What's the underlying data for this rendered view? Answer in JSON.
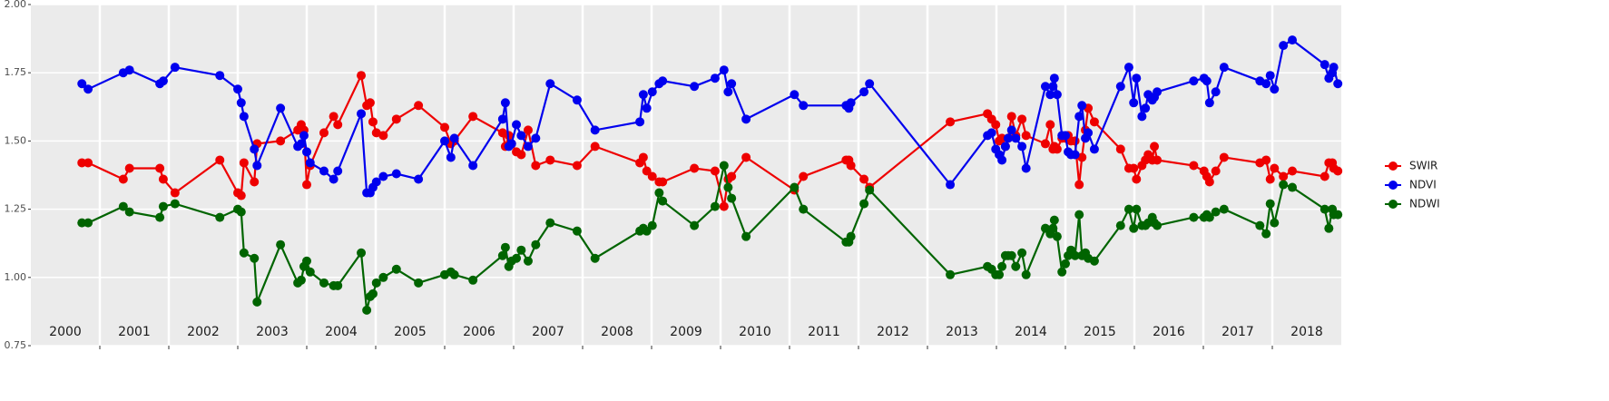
{
  "chart_data": {
    "type": "line",
    "xlim": [
      2000,
      2019
    ],
    "xticks": [
      2001,
      2002,
      2003,
      2004,
      2005,
      2006,
      2007,
      2008,
      2009,
      2010,
      2011,
      2012,
      2013,
      2014,
      2015,
      2016,
      2017,
      2018
    ],
    "ylim": [
      0.75,
      2.0
    ],
    "yticks": [
      {
        "value": 0.75,
        "label": "0.75"
      },
      {
        "value": 1.0,
        "label": "1.00"
      },
      {
        "value": 1.25,
        "label": "1.25"
      },
      {
        "value": 1.5,
        "label": "1.50"
      },
      {
        "value": 1.75,
        "label": "1.75"
      },
      {
        "value": 2.0,
        "label": "2.00"
      }
    ],
    "grid": true,
    "legend": "right",
    "year_labels": [
      {
        "value": 2000.5,
        "label": "2000"
      },
      {
        "value": 2001.5,
        "label": "2001"
      },
      {
        "value": 2002.5,
        "label": "2002"
      },
      {
        "value": 2003.5,
        "label": "2003"
      },
      {
        "value": 2004.5,
        "label": "2004"
      },
      {
        "value": 2005.5,
        "label": "2005"
      },
      {
        "value": 2006.5,
        "label": "2006"
      },
      {
        "value": 2007.5,
        "label": "2007"
      },
      {
        "value": 2008.5,
        "label": "2008"
      },
      {
        "value": 2009.5,
        "label": "2009"
      },
      {
        "value": 2010.5,
        "label": "2010"
      },
      {
        "value": 2011.5,
        "label": "2011"
      },
      {
        "value": 2012.5,
        "label": "2012"
      },
      {
        "value": 2013.5,
        "label": "2013"
      },
      {
        "value": 2014.5,
        "label": "2014"
      },
      {
        "value": 2015.5,
        "label": "2015"
      },
      {
        "value": 2016.5,
        "label": "2016"
      },
      {
        "value": 2017.5,
        "label": "2017"
      },
      {
        "value": 2018.5,
        "label": "2018"
      }
    ],
    "x": [
      2000.74,
      2000.83,
      2001.34,
      2001.43,
      2001.87,
      2001.92,
      2002.09,
      2002.74,
      2003.0,
      2003.05,
      2003.09,
      2003.24,
      2003.28,
      2003.62,
      2003.87,
      2003.92,
      2003.96,
      2004.0,
      2004.05,
      2004.25,
      2004.39,
      2004.45,
      2004.79,
      2004.87,
      2004.92,
      2004.96,
      2005.01,
      2005.11,
      2005.3,
      2005.62,
      2006.0,
      2006.09,
      2006.14,
      2006.41,
      2006.84,
      2006.88,
      2006.93,
      2006.97,
      2007.04,
      2007.11,
      2007.21,
      2007.32,
      2007.53,
      2007.92,
      2008.18,
      2008.83,
      2008.88,
      2008.93,
      2009.01,
      2009.11,
      2009.16,
      2009.62,
      2009.92,
      2010.05,
      2010.11,
      2010.16,
      2010.37,
      2011.07,
      2011.2,
      2011.82,
      2011.86,
      2011.89,
      2012.08,
      2012.16,
      2013.33,
      2013.87,
      2013.93,
      2013.99,
      2014.04,
      2014.08,
      2014.13,
      2014.17,
      2014.22,
      2014.28,
      2014.37,
      2014.43,
      2014.71,
      2014.78,
      2014.82,
      2014.84,
      2014.88,
      2014.95,
      2015.0,
      2015.04,
      2015.08,
      2015.14,
      2015.2,
      2015.24,
      2015.29,
      2015.33,
      2015.42,
      2015.8,
      2015.92,
      2015.99,
      2016.03,
      2016.11,
      2016.16,
      2016.2,
      2016.26,
      2016.29,
      2016.33,
      2016.86,
      2017.01,
      2017.05,
      2017.09,
      2017.18,
      2017.3,
      2017.82,
      2017.91,
      2017.97,
      2018.03,
      2018.16,
      2018.29,
      2018.76,
      2018.82,
      2018.87,
      2018.89,
      2018.95
    ],
    "series": [
      {
        "name": "SWIR",
        "color": "#ee0000",
        "values": [
          1.42,
          1.42,
          1.36,
          1.4,
          1.4,
          1.36,
          1.31,
          1.43,
          1.31,
          1.3,
          1.42,
          1.35,
          1.49,
          1.5,
          1.54,
          1.56,
          1.54,
          1.34,
          1.41,
          1.53,
          1.59,
          1.56,
          1.74,
          1.63,
          1.64,
          1.57,
          1.53,
          1.52,
          1.58,
          1.63,
          1.55,
          1.49,
          1.5,
          1.59,
          1.53,
          1.48,
          1.52,
          1.49,
          1.46,
          1.45,
          1.54,
          1.41,
          1.43,
          1.41,
          1.48,
          1.42,
          1.44,
          1.39,
          1.37,
          1.35,
          1.35,
          1.4,
          1.39,
          1.26,
          1.36,
          1.37,
          1.44,
          1.32,
          1.37,
          1.43,
          1.43,
          1.41,
          1.36,
          1.33,
          1.57,
          1.6,
          1.58,
          1.56,
          1.5,
          1.51,
          1.48,
          1.51,
          1.59,
          1.52,
          1.58,
          1.52,
          1.49,
          1.56,
          1.47,
          1.48,
          1.47,
          1.51,
          1.51,
          1.52,
          1.5,
          1.5,
          1.34,
          1.44,
          1.54,
          1.62,
          1.57,
          1.47,
          1.4,
          1.4,
          1.36,
          1.41,
          1.43,
          1.45,
          1.43,
          1.48,
          1.43,
          1.41,
          1.39,
          1.37,
          1.35,
          1.39,
          1.44,
          1.42,
          1.43,
          1.36,
          1.4,
          1.37,
          1.39,
          1.37,
          1.42,
          1.42,
          1.4,
          1.39
        ]
      },
      {
        "name": "NDVI",
        "color": "#0000ee",
        "values": [
          1.71,
          1.69,
          1.75,
          1.76,
          1.71,
          1.72,
          1.77,
          1.74,
          1.69,
          1.64,
          1.59,
          1.47,
          1.41,
          1.62,
          1.48,
          1.49,
          1.52,
          1.46,
          1.42,
          1.39,
          1.36,
          1.39,
          1.6,
          1.31,
          1.31,
          1.33,
          1.35,
          1.37,
          1.38,
          1.36,
          1.5,
          1.44,
          1.51,
          1.41,
          1.58,
          1.64,
          1.48,
          1.49,
          1.56,
          1.52,
          1.48,
          1.51,
          1.71,
          1.65,
          1.54,
          1.57,
          1.67,
          1.62,
          1.68,
          1.71,
          1.72,
          1.7,
          1.73,
          1.76,
          1.68,
          1.71,
          1.58,
          1.67,
          1.63,
          1.63,
          1.62,
          1.64,
          1.68,
          1.71,
          1.34,
          1.52,
          1.53,
          1.47,
          1.45,
          1.43,
          1.48,
          1.51,
          1.54,
          1.51,
          1.48,
          1.4,
          1.7,
          1.67,
          1.7,
          1.73,
          1.67,
          1.52,
          1.52,
          1.46,
          1.45,
          1.45,
          1.59,
          1.63,
          1.51,
          1.53,
          1.47,
          1.7,
          1.77,
          1.64,
          1.73,
          1.59,
          1.62,
          1.67,
          1.65,
          1.66,
          1.68,
          1.72,
          1.73,
          1.72,
          1.64,
          1.68,
          1.77,
          1.72,
          1.71,
          1.74,
          1.69,
          1.85,
          1.87,
          1.78,
          1.73,
          1.75,
          1.77,
          1.71
        ]
      },
      {
        "name": "NDWI",
        "color": "#006400",
        "values": [
          1.2,
          1.2,
          1.26,
          1.24,
          1.22,
          1.26,
          1.27,
          1.22,
          1.25,
          1.24,
          1.09,
          1.07,
          0.91,
          1.12,
          0.98,
          0.99,
          1.04,
          1.06,
          1.02,
          0.98,
          0.97,
          0.97,
          1.09,
          0.88,
          0.93,
          0.94,
          0.98,
          1.0,
          1.03,
          0.98,
          1.01,
          1.02,
          1.01,
          0.99,
          1.08,
          1.11,
          1.04,
          1.06,
          1.07,
          1.1,
          1.06,
          1.12,
          1.2,
          1.17,
          1.07,
          1.17,
          1.18,
          1.17,
          1.19,
          1.31,
          1.28,
          1.19,
          1.26,
          1.41,
          1.33,
          1.29,
          1.15,
          1.33,
          1.25,
          1.13,
          1.13,
          1.15,
          1.27,
          1.32,
          1.01,
          1.04,
          1.03,
          1.01,
          1.01,
          1.04,
          1.08,
          1.08,
          1.08,
          1.04,
          1.09,
          1.01,
          1.18,
          1.16,
          1.18,
          1.21,
          1.15,
          1.02,
          1.05,
          1.08,
          1.1,
          1.08,
          1.23,
          1.08,
          1.09,
          1.07,
          1.06,
          1.19,
          1.25,
          1.18,
          1.25,
          1.19,
          1.19,
          1.2,
          1.22,
          1.2,
          1.19,
          1.22,
          1.22,
          1.23,
          1.22,
          1.24,
          1.25,
          1.19,
          1.16,
          1.27,
          1.2,
          1.34,
          1.33,
          1.25,
          1.18,
          1.25,
          1.23,
          1.23
        ]
      }
    ]
  }
}
